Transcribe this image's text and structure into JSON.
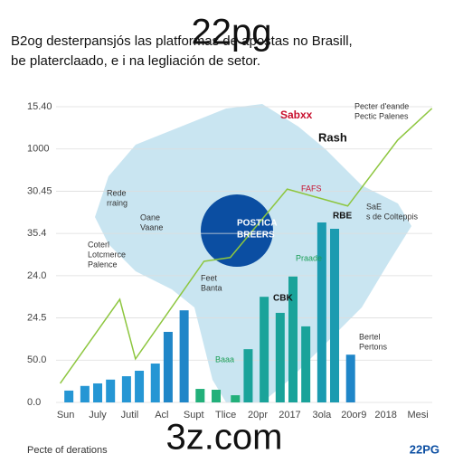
{
  "chart_data": {
    "type": "bar",
    "title": [
      "B2og desterpansjós las platformas de apostas no Brasill,",
      "be platerclaado, e i na legliación de setor."
    ],
    "watermarks": [
      "22pg",
      "3z.com"
    ],
    "footer": "Pecte of derations",
    "brand": "22PG",
    "x": [
      0.1,
      0.6,
      1.0,
      1.4,
      1.9,
      2.3,
      2.8,
      3.2,
      3.7,
      4.2,
      4.7,
      5.3,
      5.7,
      6.2,
      6.7,
      7.1,
      7.5,
      8.0,
      8.4,
      8.9
    ],
    "values": [
      0.28,
      0.39,
      0.45,
      0.54,
      0.62,
      0.75,
      0.92,
      1.67,
      2.18,
      0.32,
      0.3,
      0.17,
      1.26,
      2.5,
      2.12,
      2.98,
      1.8,
      4.26,
      4.11,
      1.13
    ],
    "colors": [
      "#2596d4",
      "#2596d4",
      "#2596d4",
      "#2596d4",
      "#2596d4",
      "#2596d4",
      "#2596d4",
      "#1f86c8",
      "#1f86c8",
      "#22b07a",
      "#22b07a",
      "#22b07a",
      "#1aa39a",
      "#1aa39a",
      "#1aa39a",
      "#1aa39a",
      "#1aa39a",
      "#1b9bb0",
      "#1b9bb0",
      "#1f86c8"
    ],
    "line": {
      "color": "#8dc63f",
      "x": [
        -0.17,
        1.69,
        2.18,
        4.32,
        5.14,
        6.92,
        8.81,
        10.37,
        11.44
      ],
      "values": [
        0.45,
        2.44,
        1.03,
        3.34,
        3.43,
        5.05,
        4.65,
        6.21,
        6.96
      ]
    },
    "xlim": [
      -0.3,
      11.45
    ],
    "xticks": [
      {
        "value": 0,
        "label": "Sun"
      },
      {
        "value": 1,
        "label": "July"
      },
      {
        "value": 2,
        "label": "Jutil"
      },
      {
        "value": 3,
        "label": "Acl"
      },
      {
        "value": 4,
        "label": "Supt"
      },
      {
        "value": 5,
        "label": "Tlice"
      },
      {
        "value": 6,
        "label": "20pr"
      },
      {
        "value": 7,
        "label": "2017"
      },
      {
        "value": 8,
        "label": "3ola"
      },
      {
        "value": 9,
        "label": "20or9"
      },
      {
        "value": 10,
        "label": "2018"
      },
      {
        "value": 11,
        "label": "Mesi"
      }
    ],
    "ylim": [
      0,
      7
    ],
    "yticks": [
      {
        "value": 0,
        "label": "0.0"
      },
      {
        "value": 1,
        "label": "50.0"
      },
      {
        "value": 2,
        "label": "24.5"
      },
      {
        "value": 3,
        "label": "24.0"
      },
      {
        "value": 4,
        "label": "35.4"
      },
      {
        "value": 5,
        "label": "30.45"
      },
      {
        "value": 6,
        "label": "1000"
      },
      {
        "value": 7,
        "label": "15.40"
      }
    ],
    "grid": true,
    "annotations": [
      "Sabxx",
      "Rash",
      "Pecter d'eande",
      "Pectic Palenes",
      "Rede",
      "rraing",
      "Oane",
      "Vaane",
      "Coterl",
      "Lotcmerce",
      "Palence",
      "POSTICA",
      "BREERS",
      "Feet",
      "Banta",
      "Praade",
      "SaE",
      "s de Colteppis",
      "RBE",
      "CBK",
      "Bertel",
      "Pertons",
      "Baaa",
      "FAFS"
    ]
  }
}
